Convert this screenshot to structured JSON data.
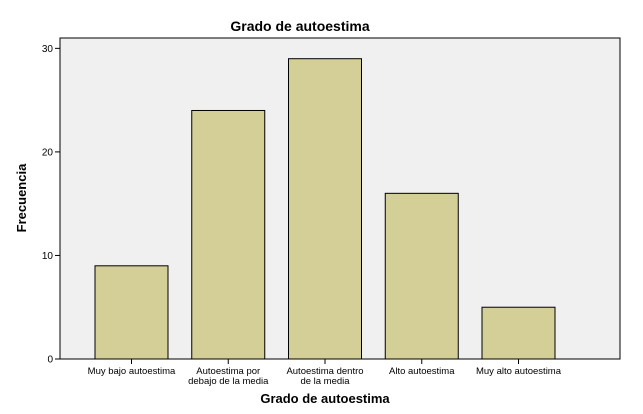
{
  "chart_data": {
    "type": "bar",
    "title": "Grado de autoestima",
    "xlabel": "Grado de autoestima",
    "ylabel": "Frecuencia",
    "categories": [
      [
        "Muy bajo autoestima"
      ],
      [
        "Autoestima por",
        "debajo de la media"
      ],
      [
        "Autoestima dentro",
        "de la media"
      ],
      [
        "Alto autoestima"
      ],
      [
        "Muy alto autoestima"
      ]
    ],
    "values": [
      9,
      24,
      29,
      16,
      5
    ],
    "ylim": [
      0,
      31
    ],
    "yticks": [
      "0",
      "10",
      "20",
      "30"
    ],
    "grid": false,
    "colors": {
      "bar_fill": "#d4cf97",
      "bar_stroke": "#000000",
      "plot_background": "#f0f0f0",
      "axis": "#000000"
    }
  }
}
